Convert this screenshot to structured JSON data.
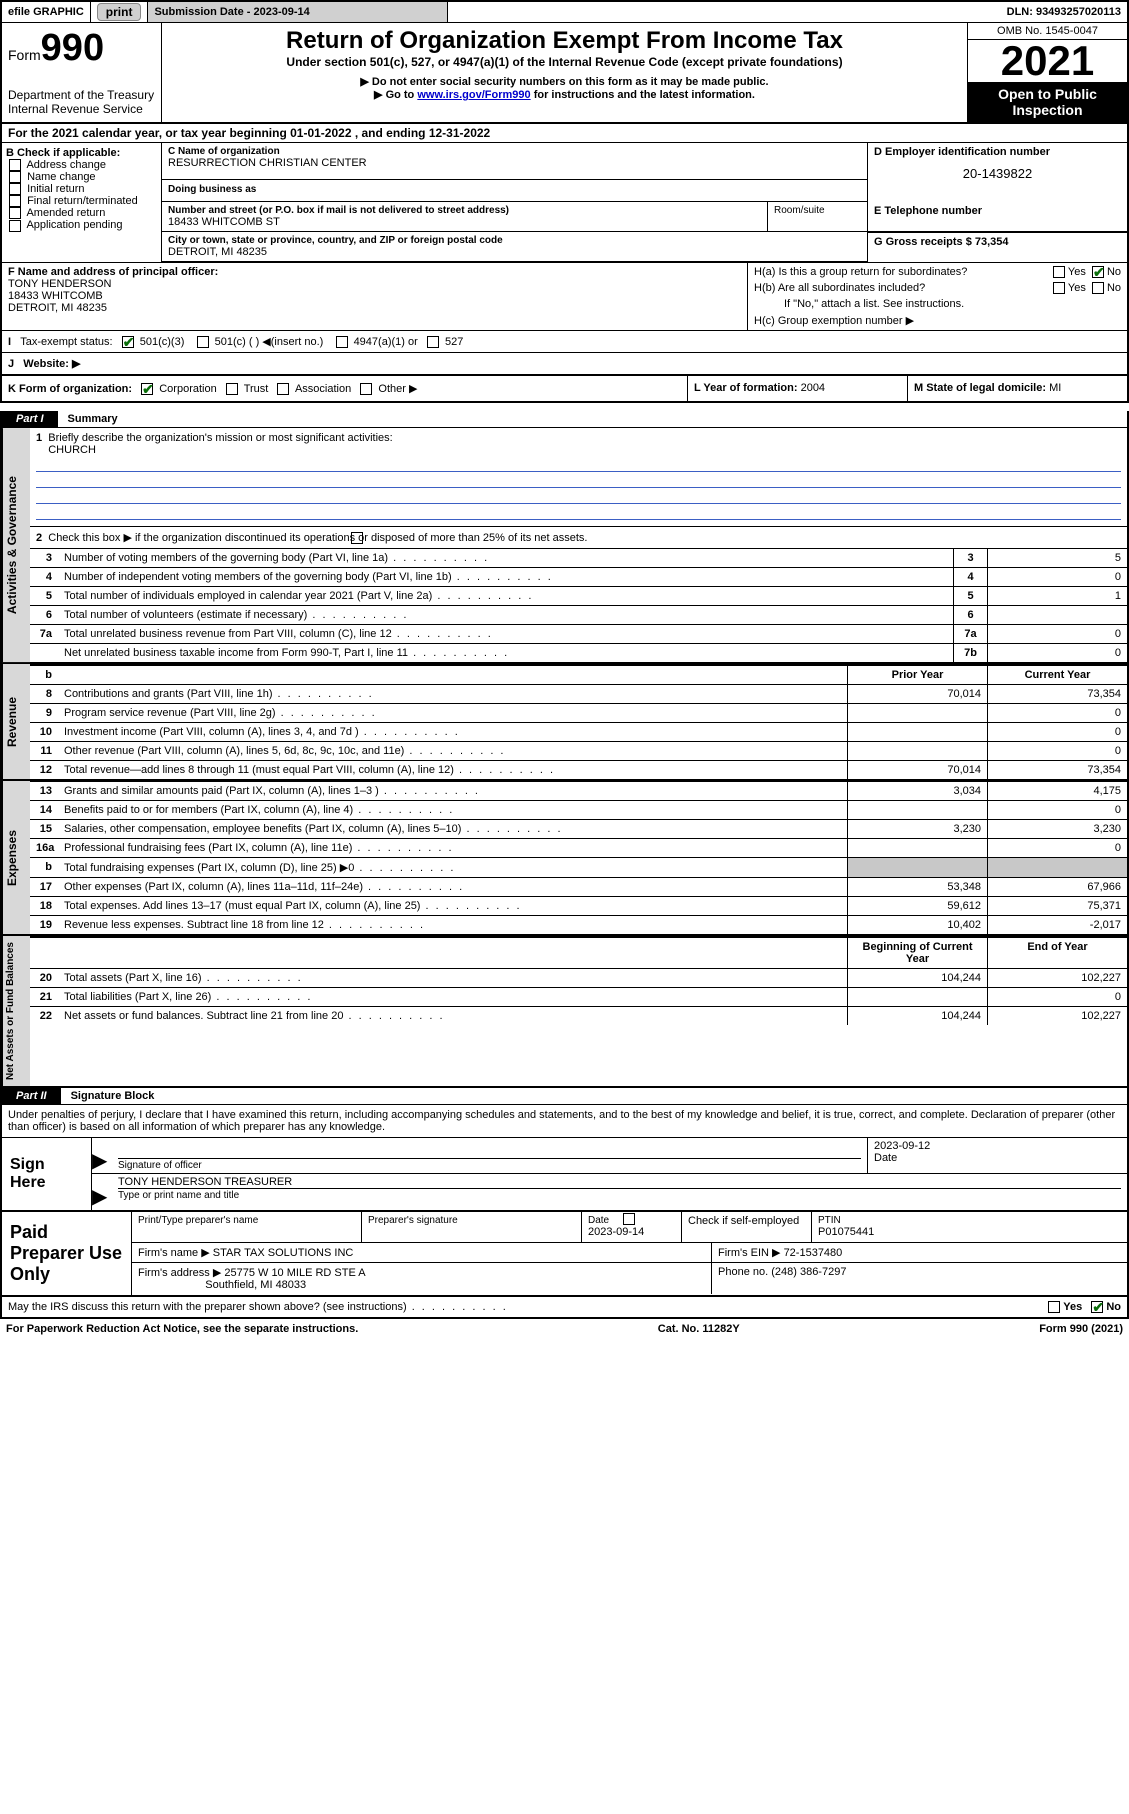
{
  "topbar": {
    "efile": "efile GRAPHIC",
    "print": "print",
    "sub_label": "Submission Date - 2023-09-14",
    "dln": "DLN: 93493257020113"
  },
  "header": {
    "form_label": "Form",
    "form_num": "990",
    "dept": "Department of the Treasury",
    "irs": "Internal Revenue Service",
    "title": "Return of Organization Exempt From Income Tax",
    "subtitle": "Under section 501(c), 527, or 4947(a)(1) of the Internal Revenue Code (except private foundations)",
    "note1": "▶ Do not enter social security numbers on this form as it may be made public.",
    "note2_pre": "▶ Go to ",
    "note2_link": "www.irs.gov/Form990",
    "note2_post": " for instructions and the latest information.",
    "omb": "OMB No. 1545-0047",
    "year": "2021",
    "open": "Open to Public Inspection"
  },
  "A": "For the 2021 calendar year, or tax year beginning 01-01-2022    , and ending 12-31-2022",
  "B": {
    "header": "B Check if applicable:",
    "items": [
      "Address change",
      "Name change",
      "Initial return",
      "Final return/terminated",
      "Amended return",
      "Application pending"
    ]
  },
  "C": {
    "name_label": "C Name of organization",
    "name": "RESURRECTION CHRISTIAN CENTER",
    "dba_label": "Doing business as",
    "street_label": "Number and street (or P.O. box if mail is not delivered to street address)",
    "street": "18433 WHITCOMB ST",
    "room_label": "Room/suite",
    "city_label": "City or town, state or province, country, and ZIP or foreign postal code",
    "city": "DETROIT, MI  48235"
  },
  "D": {
    "label": "D Employer identification number",
    "value": "20-1439822"
  },
  "E": {
    "label": "E Telephone number"
  },
  "G": {
    "label": "G Gross receipts $",
    "value": "73,354"
  },
  "F": {
    "label": "F  Name and address of principal officer:",
    "name": "TONY HENDERSON",
    "street": "18433 WHITCOMB",
    "city": "DETROIT, MI  48235"
  },
  "H": {
    "a": "H(a)  Is this a group return for subordinates?",
    "b": "H(b)  Are all subordinates included?",
    "b_note": "If \"No,\" attach a list. See instructions.",
    "c": "H(c)  Group exemption number ▶",
    "yes": "Yes",
    "no": "No"
  },
  "I": {
    "label": "Tax-exempt status:",
    "opts": [
      "501(c)(3)",
      "501(c) (  ) ◀(insert no.)",
      "4947(a)(1) or",
      "527"
    ]
  },
  "J": "Website: ▶",
  "K": {
    "label": "K Form of organization:",
    "opts": [
      "Corporation",
      "Trust",
      "Association",
      "Other ▶"
    ]
  },
  "L": {
    "label": "L Year of formation:",
    "value": "2004"
  },
  "M": {
    "label": "M State of legal domicile:",
    "value": "MI"
  },
  "part1": {
    "tab": "Part I",
    "title": "Summary"
  },
  "sections": {
    "ag": "Activities & Governance",
    "rev": "Revenue",
    "exp": "Expenses",
    "na": "Net Assets or Fund Balances"
  },
  "q1": {
    "label": "Briefly describe the organization's mission or most significant activities:",
    "value": "CHURCH"
  },
  "q2": "Check this box ▶        if the organization discontinued its operations or disposed of more than 25% of its net assets.",
  "rows_ag": [
    {
      "n": "3",
      "d": "Number of voting members of the governing body (Part VI, line 1a)",
      "box": "3",
      "v": "5"
    },
    {
      "n": "4",
      "d": "Number of independent voting members of the governing body (Part VI, line 1b)",
      "box": "4",
      "v": "0"
    },
    {
      "n": "5",
      "d": "Total number of individuals employed in calendar year 2021 (Part V, line 2a)",
      "box": "5",
      "v": "1"
    },
    {
      "n": "6",
      "d": "Total number of volunteers (estimate if necessary)",
      "box": "6",
      "v": ""
    },
    {
      "n": "7a",
      "d": "Total unrelated business revenue from Part VIII, column (C), line 12",
      "box": "7a",
      "v": "0"
    },
    {
      "n": "",
      "d": "Net unrelated business taxable income from Form 990-T, Part I, line 11",
      "box": "7b",
      "v": "0"
    }
  ],
  "col_headers": {
    "b": "b",
    "prior": "Prior Year",
    "current": "Current Year"
  },
  "rows_rev": [
    {
      "n": "8",
      "d": "Contributions and grants (Part VIII, line 1h)",
      "p": "70,014",
      "c": "73,354"
    },
    {
      "n": "9",
      "d": "Program service revenue (Part VIII, line 2g)",
      "p": "",
      "c": "0"
    },
    {
      "n": "10",
      "d": "Investment income (Part VIII, column (A), lines 3, 4, and 7d )",
      "p": "",
      "c": "0"
    },
    {
      "n": "11",
      "d": "Other revenue (Part VIII, column (A), lines 5, 6d, 8c, 9c, 10c, and 11e)",
      "p": "",
      "c": "0"
    },
    {
      "n": "12",
      "d": "Total revenue—add lines 8 through 11 (must equal Part VIII, column (A), line 12)",
      "p": "70,014",
      "c": "73,354"
    }
  ],
  "rows_exp": [
    {
      "n": "13",
      "d": "Grants and similar amounts paid (Part IX, column (A), lines 1–3 )",
      "p": "3,034",
      "c": "4,175"
    },
    {
      "n": "14",
      "d": "Benefits paid to or for members (Part IX, column (A), line 4)",
      "p": "",
      "c": "0"
    },
    {
      "n": "15",
      "d": "Salaries, other compensation, employee benefits (Part IX, column (A), lines 5–10)",
      "p": "3,230",
      "c": "3,230"
    },
    {
      "n": "16a",
      "d": "Professional fundraising fees (Part IX, column (A), line 11e)",
      "p": "",
      "c": "0"
    },
    {
      "n": "b",
      "d": "Total fundraising expenses (Part IX, column (D), line 25) ▶0",
      "p": "GRAY",
      "c": "GRAY"
    },
    {
      "n": "17",
      "d": "Other expenses (Part IX, column (A), lines 11a–11d, 11f–24e)",
      "p": "53,348",
      "c": "67,966"
    },
    {
      "n": "18",
      "d": "Total expenses. Add lines 13–17 (must equal Part IX, column (A), line 25)",
      "p": "59,612",
      "c": "75,371"
    },
    {
      "n": "19",
      "d": "Revenue less expenses. Subtract line 18 from line 12",
      "p": "10,402",
      "c": "-2,017"
    }
  ],
  "na_headers": {
    "begin": "Beginning of Current Year",
    "end": "End of Year"
  },
  "rows_na": [
    {
      "n": "20",
      "d": "Total assets (Part X, line 16)",
      "p": "104,244",
      "c": "102,227"
    },
    {
      "n": "21",
      "d": "Total liabilities (Part X, line 26)",
      "p": "",
      "c": "0"
    },
    {
      "n": "22",
      "d": "Net assets or fund balances. Subtract line 21 from line 20",
      "p": "104,244",
      "c": "102,227"
    }
  ],
  "part2": {
    "tab": "Part II",
    "title": "Signature Block"
  },
  "sig_intro": "Under penalties of perjury, I declare that I have examined this return, including accompanying schedules and statements, and to the best of my knowledge and belief, it is true, correct, and complete. Declaration of preparer (other than officer) is based on all information of which preparer has any knowledge.",
  "sign": {
    "here": "Sign Here",
    "officer_label": "Signature of officer",
    "date": "2023-09-12",
    "date_label": "Date",
    "name": "TONY HENDERSON  TREASURER",
    "name_label": "Type or print name and title"
  },
  "prep": {
    "title": "Paid Preparer Use Only",
    "pt_name_label": "Print/Type preparer's name",
    "sig_label": "Preparer's signature",
    "date_label": "Date",
    "date": "2023-09-14",
    "check_label": "Check          if self-employed",
    "ptin_label": "PTIN",
    "ptin": "P01075441",
    "firm_name_label": "Firm's name    ▶",
    "firm_name": "STAR TAX SOLUTIONS INC",
    "firm_ein_label": "Firm's EIN ▶",
    "firm_ein": "72-1537480",
    "firm_addr_label": "Firm's address ▶",
    "firm_addr1": "25775 W 10 MILE RD STE A",
    "firm_addr2": "Southfield, MI  48033",
    "phone_label": "Phone no.",
    "phone": "(248) 386-7297"
  },
  "discuss": "May the IRS discuss this return with the preparer shown above? (see instructions)",
  "footer": {
    "paperwork": "For Paperwork Reduction Act Notice, see the separate instructions.",
    "cat": "Cat. No. 11282Y",
    "form": "Form 990 (2021)"
  }
}
